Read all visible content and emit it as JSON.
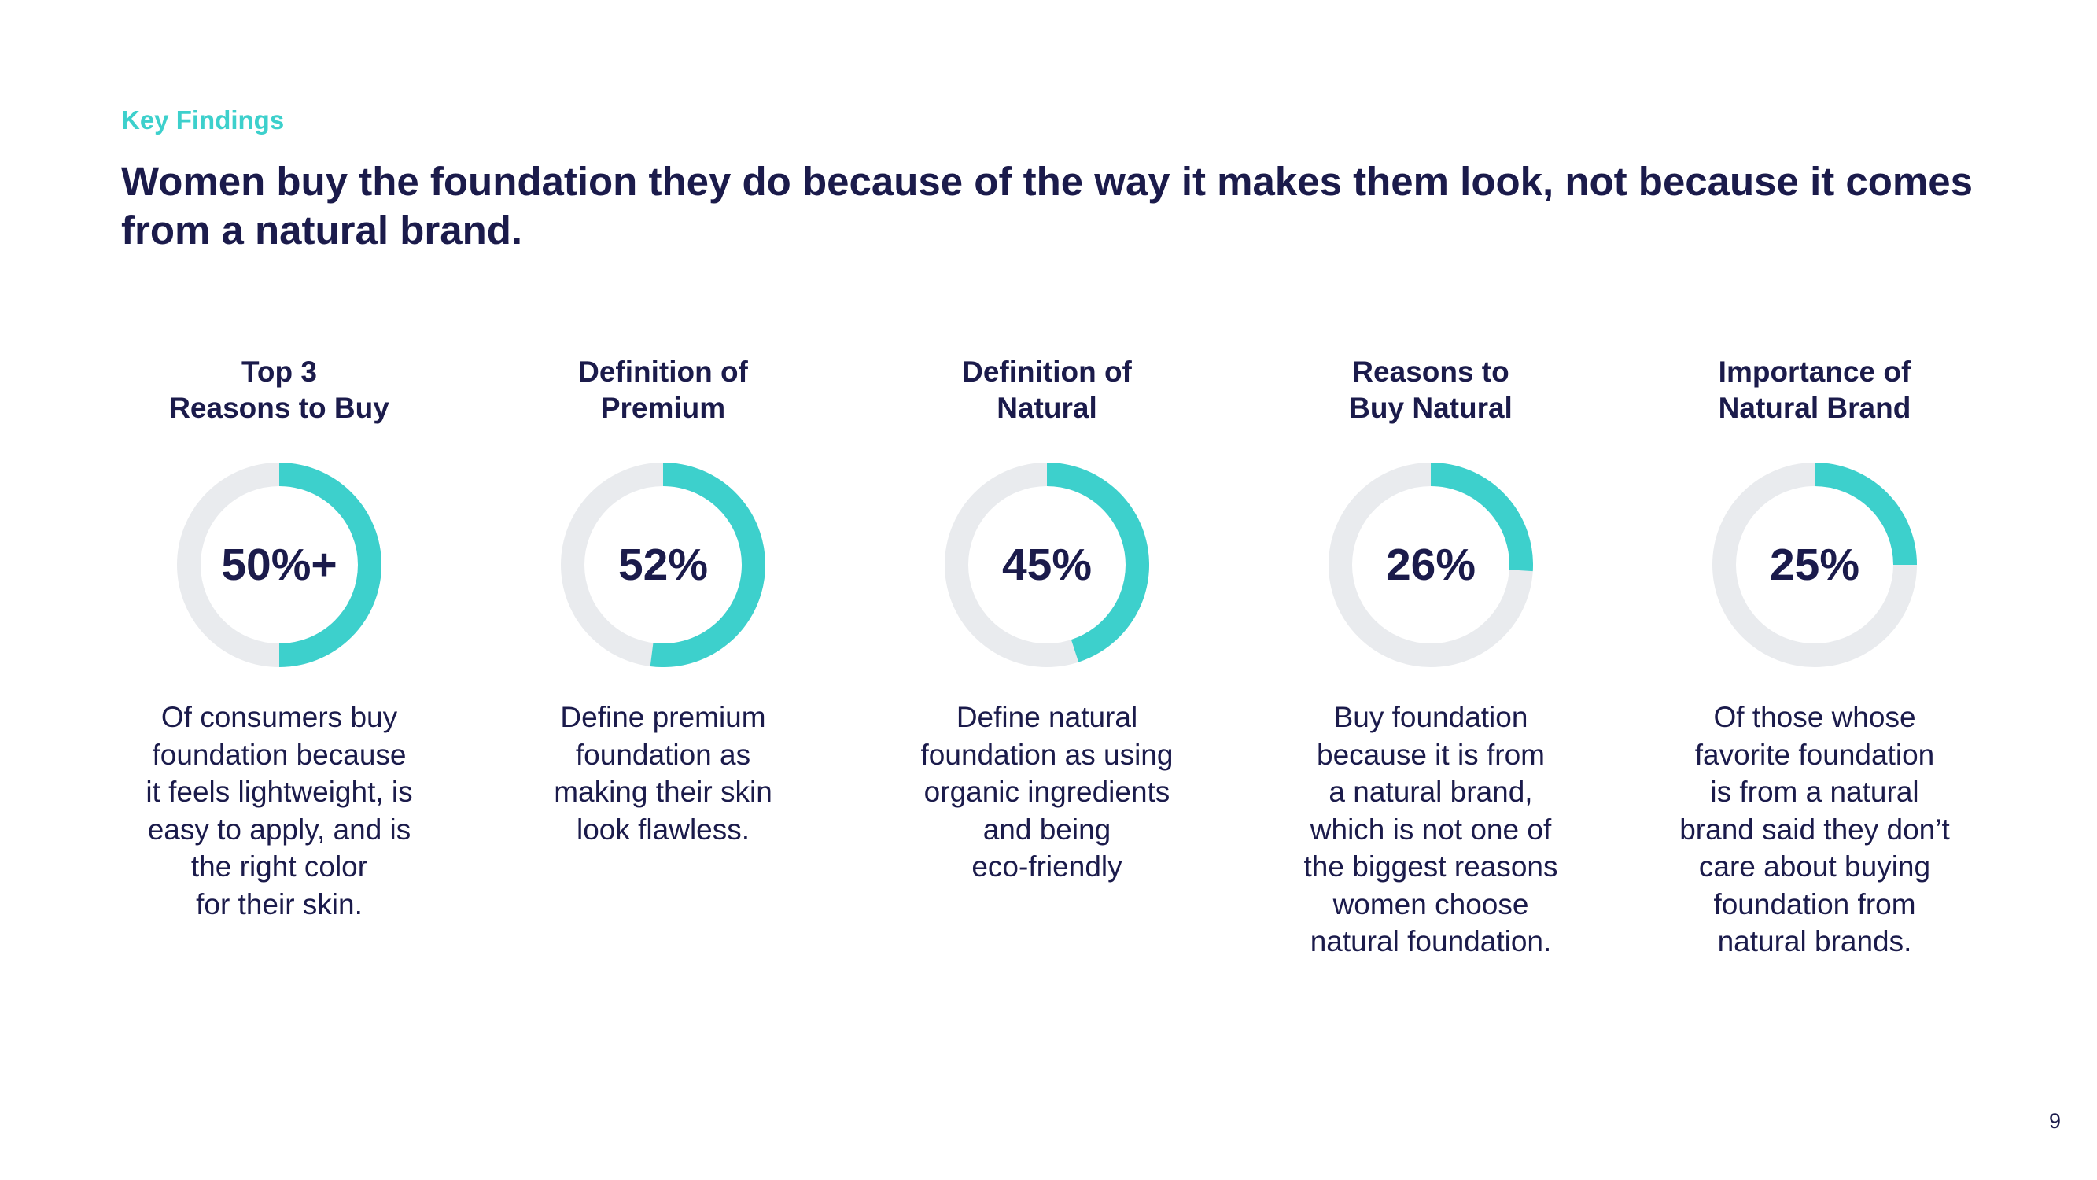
{
  "header": {
    "eyebrow": "Key Findings",
    "headline": "Women buy the foundation they do because of the way it makes them look, not because it comes from a natural brand."
  },
  "colors": {
    "accent": "#3dd0cc",
    "track": "#e9ebee",
    "text": "#1b1b4b"
  },
  "chart_data": [
    {
      "type": "pie",
      "title": "Top 3\nReasons to Buy",
      "value": 50,
      "value_label": "50%+",
      "description": "Of consumers buy\nfoundation because\nit feels lightweight, is\neasy to apply, and is\nthe right color\nfor their skin."
    },
    {
      "type": "pie",
      "title": "Definition of\nPremium",
      "value": 52,
      "value_label": "52%",
      "description": "Define premium\nfoundation as\nmaking their skin\nlook flawless."
    },
    {
      "type": "pie",
      "title": "Definition of\nNatural",
      "value": 45,
      "value_label": "45%",
      "description": "Define natural\nfoundation as using\norganic ingredients\nand being\neco-friendly"
    },
    {
      "type": "pie",
      "title": "Reasons to\nBuy Natural",
      "value": 26,
      "value_label": "26%",
      "description": "Buy foundation\nbecause it is from\na natural brand,\nwhich is not one of\nthe biggest reasons\nwomen choose\nnatural foundation."
    },
    {
      "type": "pie",
      "title": "Importance of\nNatural Brand",
      "value": 25,
      "value_label": "25%",
      "description": "Of those whose\nfavorite foundation\nis from a natural\nbrand said they don’t\ncare about buying\nfoundation from\nnatural brands."
    }
  ],
  "footer": {
    "page_number": "9"
  }
}
